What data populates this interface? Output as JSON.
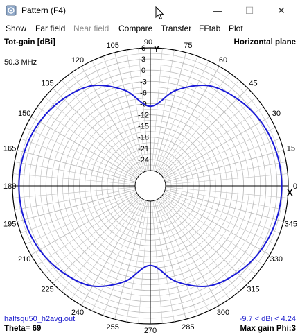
{
  "window": {
    "title": "Pattern   (F4)",
    "minimize_symbol": "—",
    "maximize_symbol": "☐",
    "close_symbol": "✕"
  },
  "menu": [
    {
      "label": "Show",
      "enabled": true
    },
    {
      "label": "Far field",
      "enabled": true
    },
    {
      "label": "Near field",
      "enabled": false
    },
    {
      "label": "Compare",
      "enabled": true
    },
    {
      "label": "Transfer",
      "enabled": true
    },
    {
      "label": "FFtab",
      "enabled": true
    },
    {
      "label": "Plot",
      "enabled": true
    }
  ],
  "plot": {
    "top_left_title": "Tot-gain [dBi]",
    "top_right_title": "Horizontal plane",
    "frequency": "50.3 MHz",
    "axis_label": "Y",
    "x_marker": "X",
    "file_name": "halfsqu50_h2avg.out",
    "theta": "Theta= 69",
    "range_text": "-9.7 < dBi < 4.24",
    "max_gain_text": "Max gain Phi:3",
    "colors": {
      "pattern": "#1a1ad8",
      "grid": "#bdbdbd",
      "axis": "#000000",
      "info": "#1a1acc"
    }
  },
  "chart_data": {
    "type": "polar",
    "title": "Tot-gain [dBi]",
    "subtitle": "Horizontal plane",
    "r_ticks": [
      "6",
      "3",
      "0",
      "-3",
      "-6",
      "-9",
      "-12",
      "-15",
      "-18",
      "-21",
      "-24"
    ],
    "r_range": [
      -27,
      6
    ],
    "angle_ticks": [
      "0",
      "15",
      "30",
      "45",
      "60",
      "75",
      "90",
      "105",
      "120",
      "135",
      "150",
      "165",
      "180",
      "195",
      "210",
      "225",
      "240",
      "255",
      "270",
      "285",
      "300",
      "315",
      "330",
      "345"
    ],
    "series": [
      {
        "phi_deg": [
          0,
          15,
          30,
          45,
          60,
          75,
          90,
          105,
          120,
          135,
          150,
          165,
          180,
          195,
          210,
          225,
          240,
          255,
          270,
          285,
          300,
          315,
          330,
          345
        ],
        "gain_dbi": [
          4.24,
          4.0,
          3.3,
          2.0,
          0.0,
          -4.5,
          -9.7,
          -4.5,
          0.0,
          2.0,
          3.3,
          4.0,
          4.24,
          4.0,
          3.3,
          2.0,
          0.0,
          -4.5,
          -9.7,
          -4.5,
          0.0,
          2.0,
          3.3,
          4.0
        ]
      }
    ]
  }
}
